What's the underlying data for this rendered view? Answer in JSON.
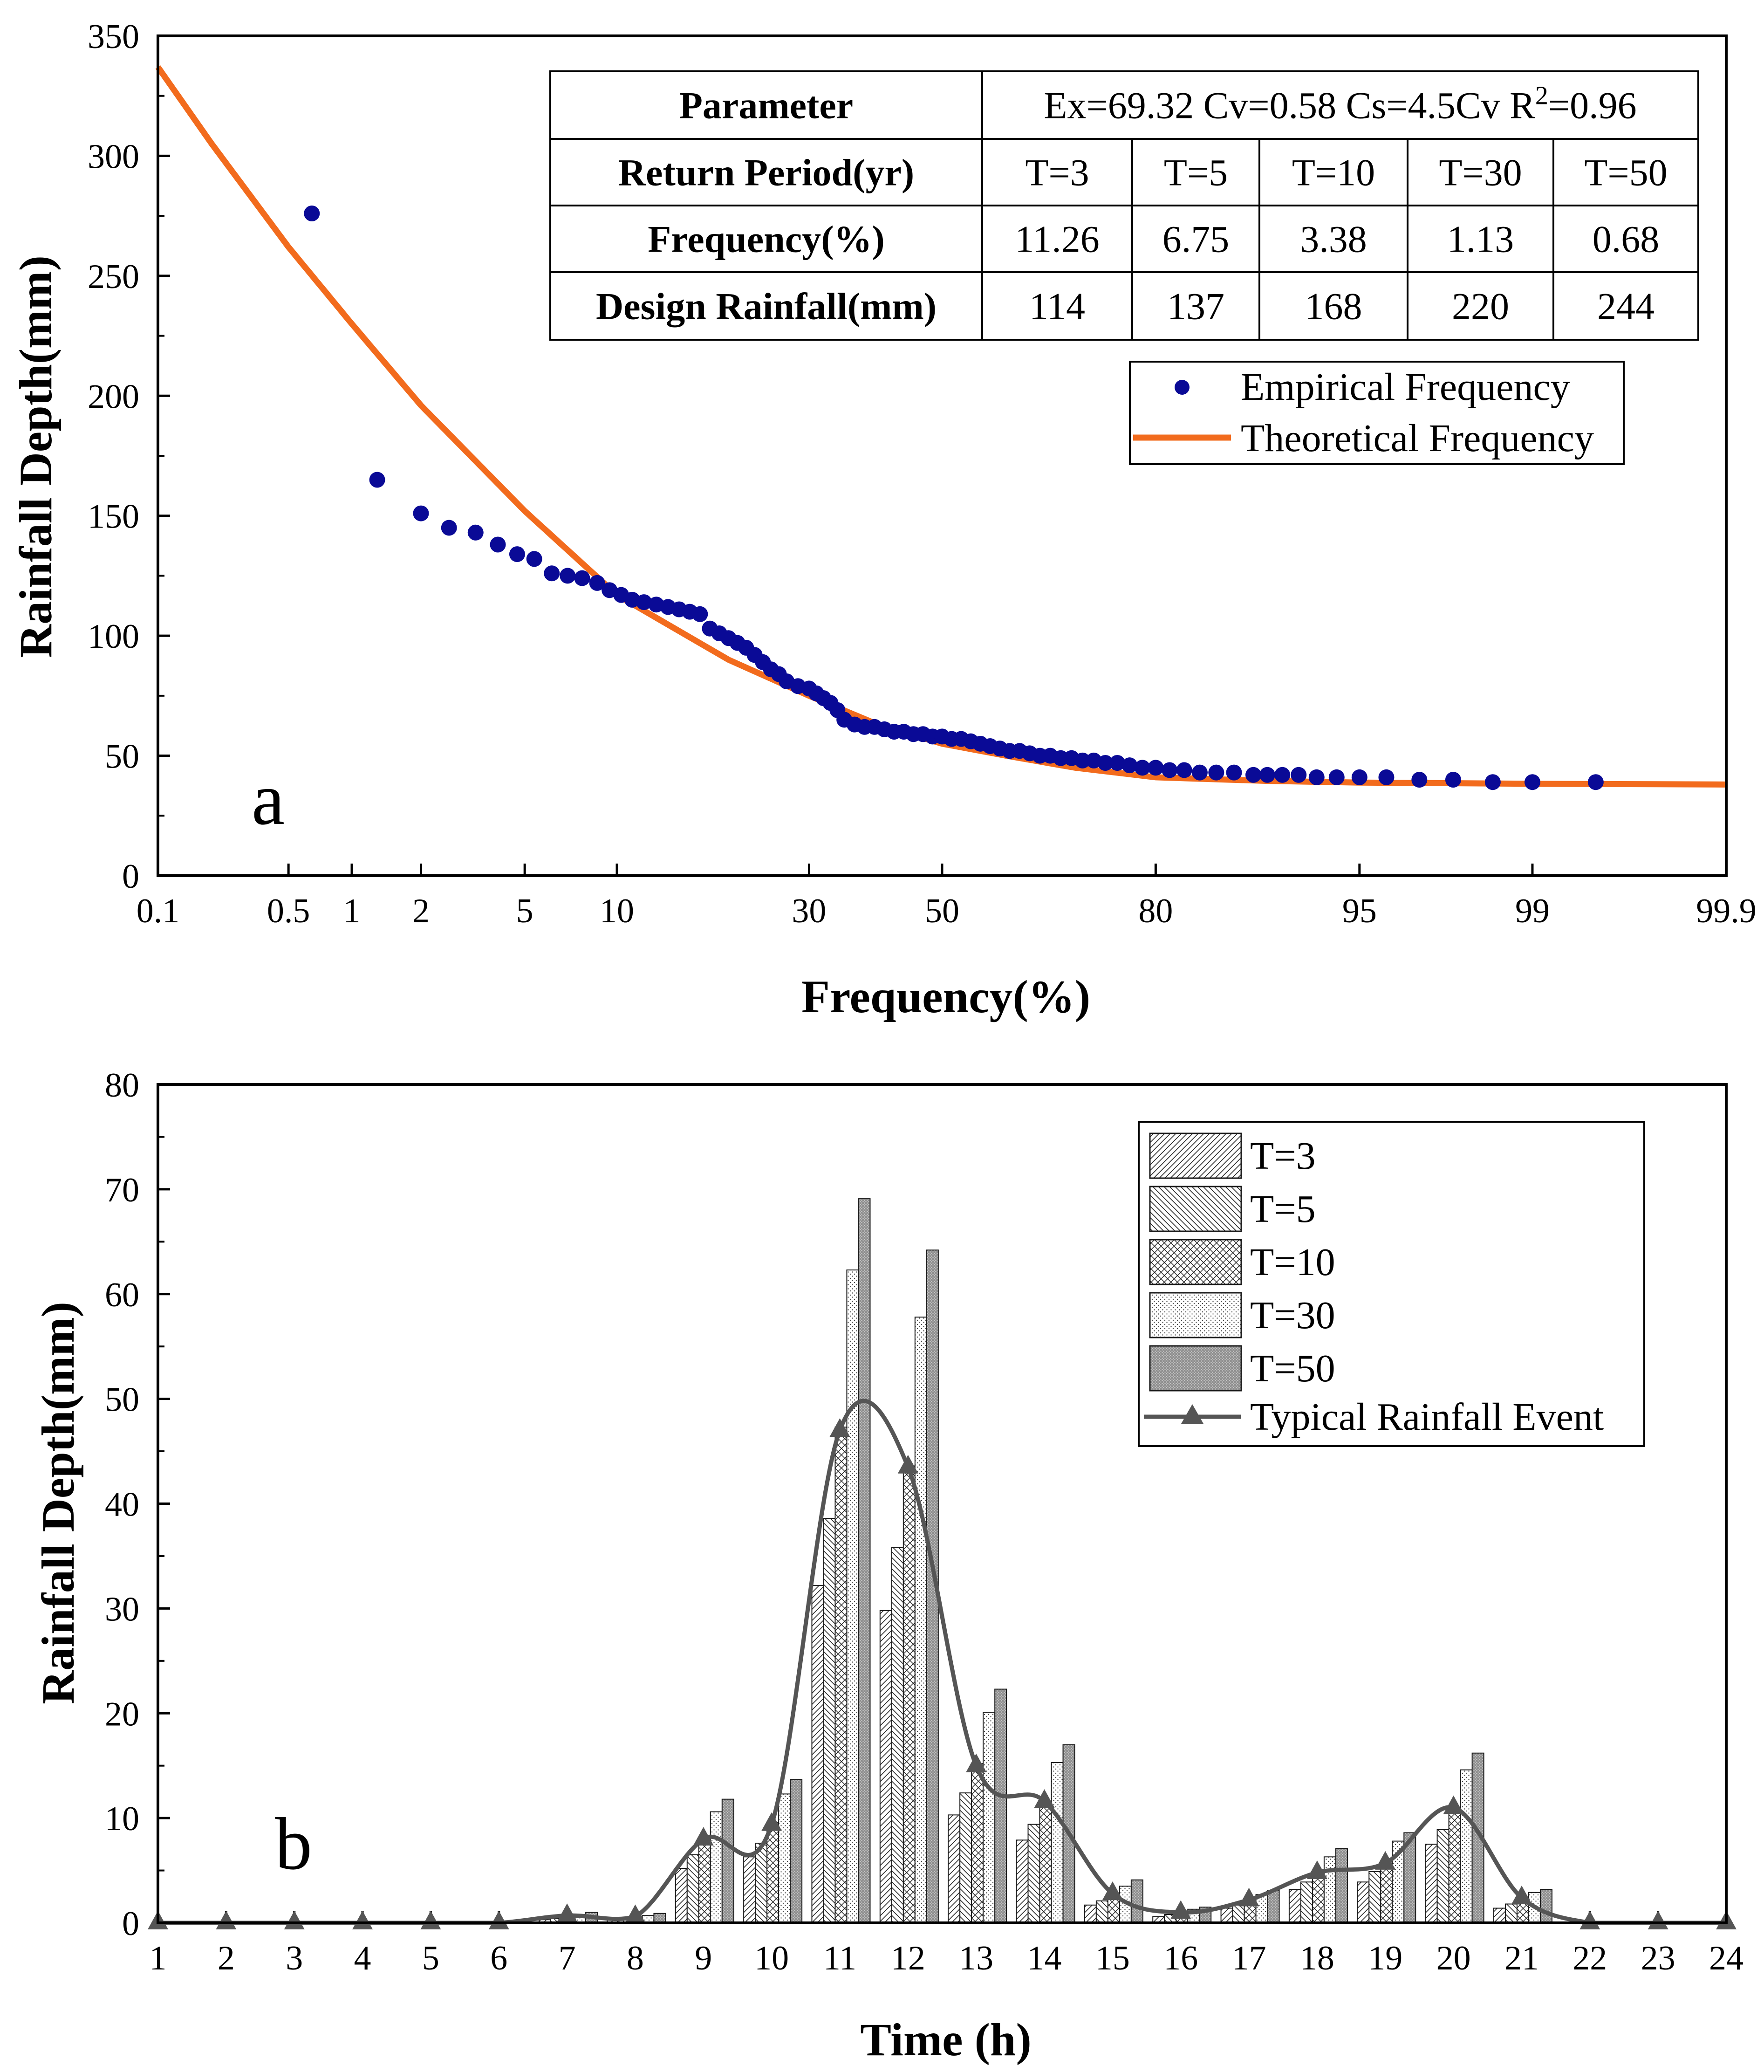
{
  "chart_data": [
    {
      "type": "scatter",
      "panel_label": "a",
      "xlabel": "Frequency(%)",
      "ylabel": "Rainfall Depth(mm)",
      "xscale": "probability",
      "xticks": [
        "0.1",
        "0.5",
        "1",
        "2",
        "5",
        "10",
        "30",
        "50",
        "80",
        "95",
        "99",
        "99.9"
      ],
      "xtick_values": [
        0.1,
        0.5,
        1,
        2,
        5,
        10,
        30,
        50,
        80,
        95,
        99,
        99.9
      ],
      "ylim": [
        0,
        350
      ],
      "yticks": [
        0,
        50,
        100,
        150,
        200,
        250,
        300,
        350
      ],
      "legend": {
        "position": "top-right",
        "entries": [
          "Empirical Frequency",
          "Theoretical Frequency"
        ]
      },
      "colors": {
        "empirical": "#0a0a96",
        "theoretical": "#f26b1d"
      },
      "table": {
        "parameter_label": "Parameter",
        "parameter_value_pre": "Ex=69.32 Cv=0.58 Cs=4.5Cv R",
        "parameter_value_sup": "2",
        "parameter_value_post": "=0.96",
        "rows": [
          [
            "Return Period(yr)",
            "T=3",
            "T=5",
            "T=10",
            "T=30",
            "T=50"
          ],
          [
            "Frequency(%)",
            "11.26",
            "6.75",
            "3.38",
            "1.13",
            "0.68"
          ],
          [
            "Design Rainfall(mm)",
            "114",
            "137",
            "168",
            "220",
            "244"
          ]
        ]
      },
      "series": [
        {
          "name": "Empirical Frequency",
          "points": [
            [
              0.65,
              276
            ],
            [
              1.3,
              165
            ],
            [
              2.0,
              151
            ],
            [
              2.6,
              145
            ],
            [
              3.3,
              143
            ],
            [
              4.0,
              138
            ],
            [
              4.7,
              134
            ],
            [
              5.4,
              132
            ],
            [
              6.2,
              126
            ],
            [
              7.0,
              125
            ],
            [
              7.8,
              124
            ],
            [
              8.7,
              122
            ],
            [
              9.5,
              119
            ],
            [
              10.3,
              117
            ],
            [
              11.1,
              115
            ],
            [
              12.0,
              114
            ],
            [
              13.0,
              113
            ],
            [
              14.0,
              112
            ],
            [
              15.0,
              111
            ],
            [
              16.0,
              110
            ],
            [
              17.0,
              109
            ],
            [
              18.0,
              103
            ],
            [
              19.0,
              101
            ],
            [
              20.0,
              99
            ],
            [
              21.0,
              97
            ],
            [
              22.0,
              95
            ],
            [
              23.0,
              92
            ],
            [
              24.0,
              89
            ],
            [
              25.0,
              86
            ],
            [
              26.0,
              84
            ],
            [
              27.0,
              81
            ],
            [
              28.5,
              79
            ],
            [
              30.0,
              78
            ],
            [
              31.0,
              76
            ],
            [
              32.0,
              74
            ],
            [
              33.0,
              72
            ],
            [
              34.0,
              69
            ],
            [
              35.0,
              65
            ],
            [
              36.5,
              63
            ],
            [
              38.0,
              62
            ],
            [
              39.5,
              62
            ],
            [
              41.0,
              61
            ],
            [
              42.5,
              60
            ],
            [
              44.0,
              60
            ],
            [
              45.5,
              59
            ],
            [
              47.0,
              59
            ],
            [
              48.5,
              58
            ],
            [
              50.0,
              58
            ],
            [
              51.5,
              57
            ],
            [
              53.0,
              57
            ],
            [
              54.5,
              56
            ],
            [
              56.0,
              55
            ],
            [
              57.5,
              54
            ],
            [
              59.0,
              53
            ],
            [
              60.5,
              52
            ],
            [
              62.0,
              52
            ],
            [
              63.5,
              51
            ],
            [
              65.0,
              50
            ],
            [
              66.5,
              50
            ],
            [
              68.0,
              49
            ],
            [
              69.5,
              49
            ],
            [
              71.0,
              48
            ],
            [
              72.5,
              48
            ],
            [
              74.0,
              47
            ],
            [
              75.5,
              47
            ],
            [
              77.0,
              46
            ],
            [
              78.5,
              45
            ],
            [
              80.0,
              45
            ],
            [
              81.5,
              44
            ],
            [
              83.0,
              44
            ],
            [
              84.5,
              43
            ],
            [
              86.0,
              43
            ],
            [
              87.5,
              43
            ],
            [
              89.0,
              42
            ],
            [
              90.0,
              42
            ],
            [
              91.0,
              42
            ],
            [
              92.0,
              42
            ],
            [
              93.0,
              41
            ],
            [
              94.0,
              41
            ],
            [
              95.0,
              41
            ],
            [
              96.0,
              41
            ],
            [
              97.0,
              40
            ],
            [
              97.8,
              40
            ],
            [
              98.5,
              39
            ],
            [
              99.0,
              39
            ],
            [
              99.5,
              39
            ]
          ]
        },
        {
          "name": "Theoretical Frequency",
          "points": [
            [
              0.1,
              337
            ],
            [
              0.2,
              305
            ],
            [
              0.5,
              262
            ],
            [
              1,
              230
            ],
            [
              2,
              196
            ],
            [
              5,
              152
            ],
            [
              10,
              117
            ],
            [
              20,
              90
            ],
            [
              30,
              75
            ],
            [
              40,
              63
            ],
            [
              50,
              55
            ],
            [
              60,
              50
            ],
            [
              70,
              45
            ],
            [
              80,
              41
            ],
            [
              90,
              39.5
            ],
            [
              95,
              38.8
            ],
            [
              99,
              38.3
            ],
            [
              99.9,
              38
            ]
          ]
        }
      ]
    },
    {
      "type": "bar",
      "panel_label": "b",
      "xlabel": "Time (h)",
      "ylabel": "Rainfall Depth(mm)",
      "xlim": [
        1,
        24
      ],
      "ylim": [
        0,
        80
      ],
      "yticks": [
        0,
        10,
        20,
        30,
        40,
        50,
        60,
        70,
        80
      ],
      "xticks": [
        "1",
        "2",
        "3",
        "4",
        "5",
        "6",
        "7",
        "8",
        "9",
        "10",
        "11",
        "12",
        "13",
        "14",
        "15",
        "16",
        "17",
        "18",
        "19",
        "20",
        "21",
        "22",
        "23",
        "24"
      ],
      "legend": {
        "position": "top-right",
        "entries": [
          "T=3",
          "T=5",
          "T=10",
          "T=30",
          "T=50",
          "Typical Rainfall Event"
        ]
      },
      "colors": {
        "line": "#555555",
        "bar_edge": "#1a1a1a"
      },
      "hours": [
        7,
        8,
        9,
        10,
        11,
        12,
        13,
        14,
        15,
        16,
        17,
        18,
        19,
        20,
        21
      ],
      "series": [
        {
          "name": "T=3",
          "values": [
            0.3,
            0.3,
            5.2,
            6.3,
            32.2,
            29.8,
            10.3,
            7.9,
            1.7,
            0.6,
            1.4,
            3.2,
            3.9,
            7.5,
            1.4
          ]
        },
        {
          "name": "T=5",
          "values": [
            0.4,
            0.4,
            6.5,
            7.6,
            38.6,
            35.8,
            12.4,
            9.4,
            2.1,
            0.8,
            1.7,
            3.9,
            4.9,
            8.9,
            1.8
          ]
        },
        {
          "name": "T=10",
          "values": [
            0.6,
            0.5,
            8.0,
            9.6,
            47.3,
            43.6,
            15.2,
            11.5,
            2.6,
            1.0,
            2.1,
            4.9,
            5.9,
            10.9,
            2.2
          ]
        },
        {
          "name": "T=30",
          "values": [
            0.8,
            0.7,
            10.6,
            12.3,
            62.3,
            57.8,
            20.1,
            15.3,
            3.5,
            1.3,
            2.7,
            6.3,
            7.8,
            14.6,
            2.9
          ]
        },
        {
          "name": "T=50",
          "values": [
            1.0,
            0.9,
            11.8,
            13.7,
            69.1,
            64.2,
            22.3,
            17.0,
            4.1,
            1.5,
            3.1,
            7.1,
            8.6,
            16.2,
            3.2
          ]
        }
      ],
      "typical_event": {
        "name": "Typical Rainfall Event",
        "x": [
          1,
          2,
          3,
          4,
          5,
          6,
          7,
          8,
          9,
          10,
          11,
          12,
          13,
          14,
          15,
          16,
          17,
          18,
          19,
          20,
          21,
          22,
          23,
          24
        ],
        "values": [
          0,
          0,
          0,
          0,
          0,
          0,
          0.7,
          0.6,
          8.0,
          9.4,
          47.0,
          43.5,
          15.0,
          11.6,
          2.8,
          1.0,
          2.2,
          4.8,
          5.7,
          11.0,
          2.4,
          0,
          0,
          0
        ]
      }
    }
  ]
}
